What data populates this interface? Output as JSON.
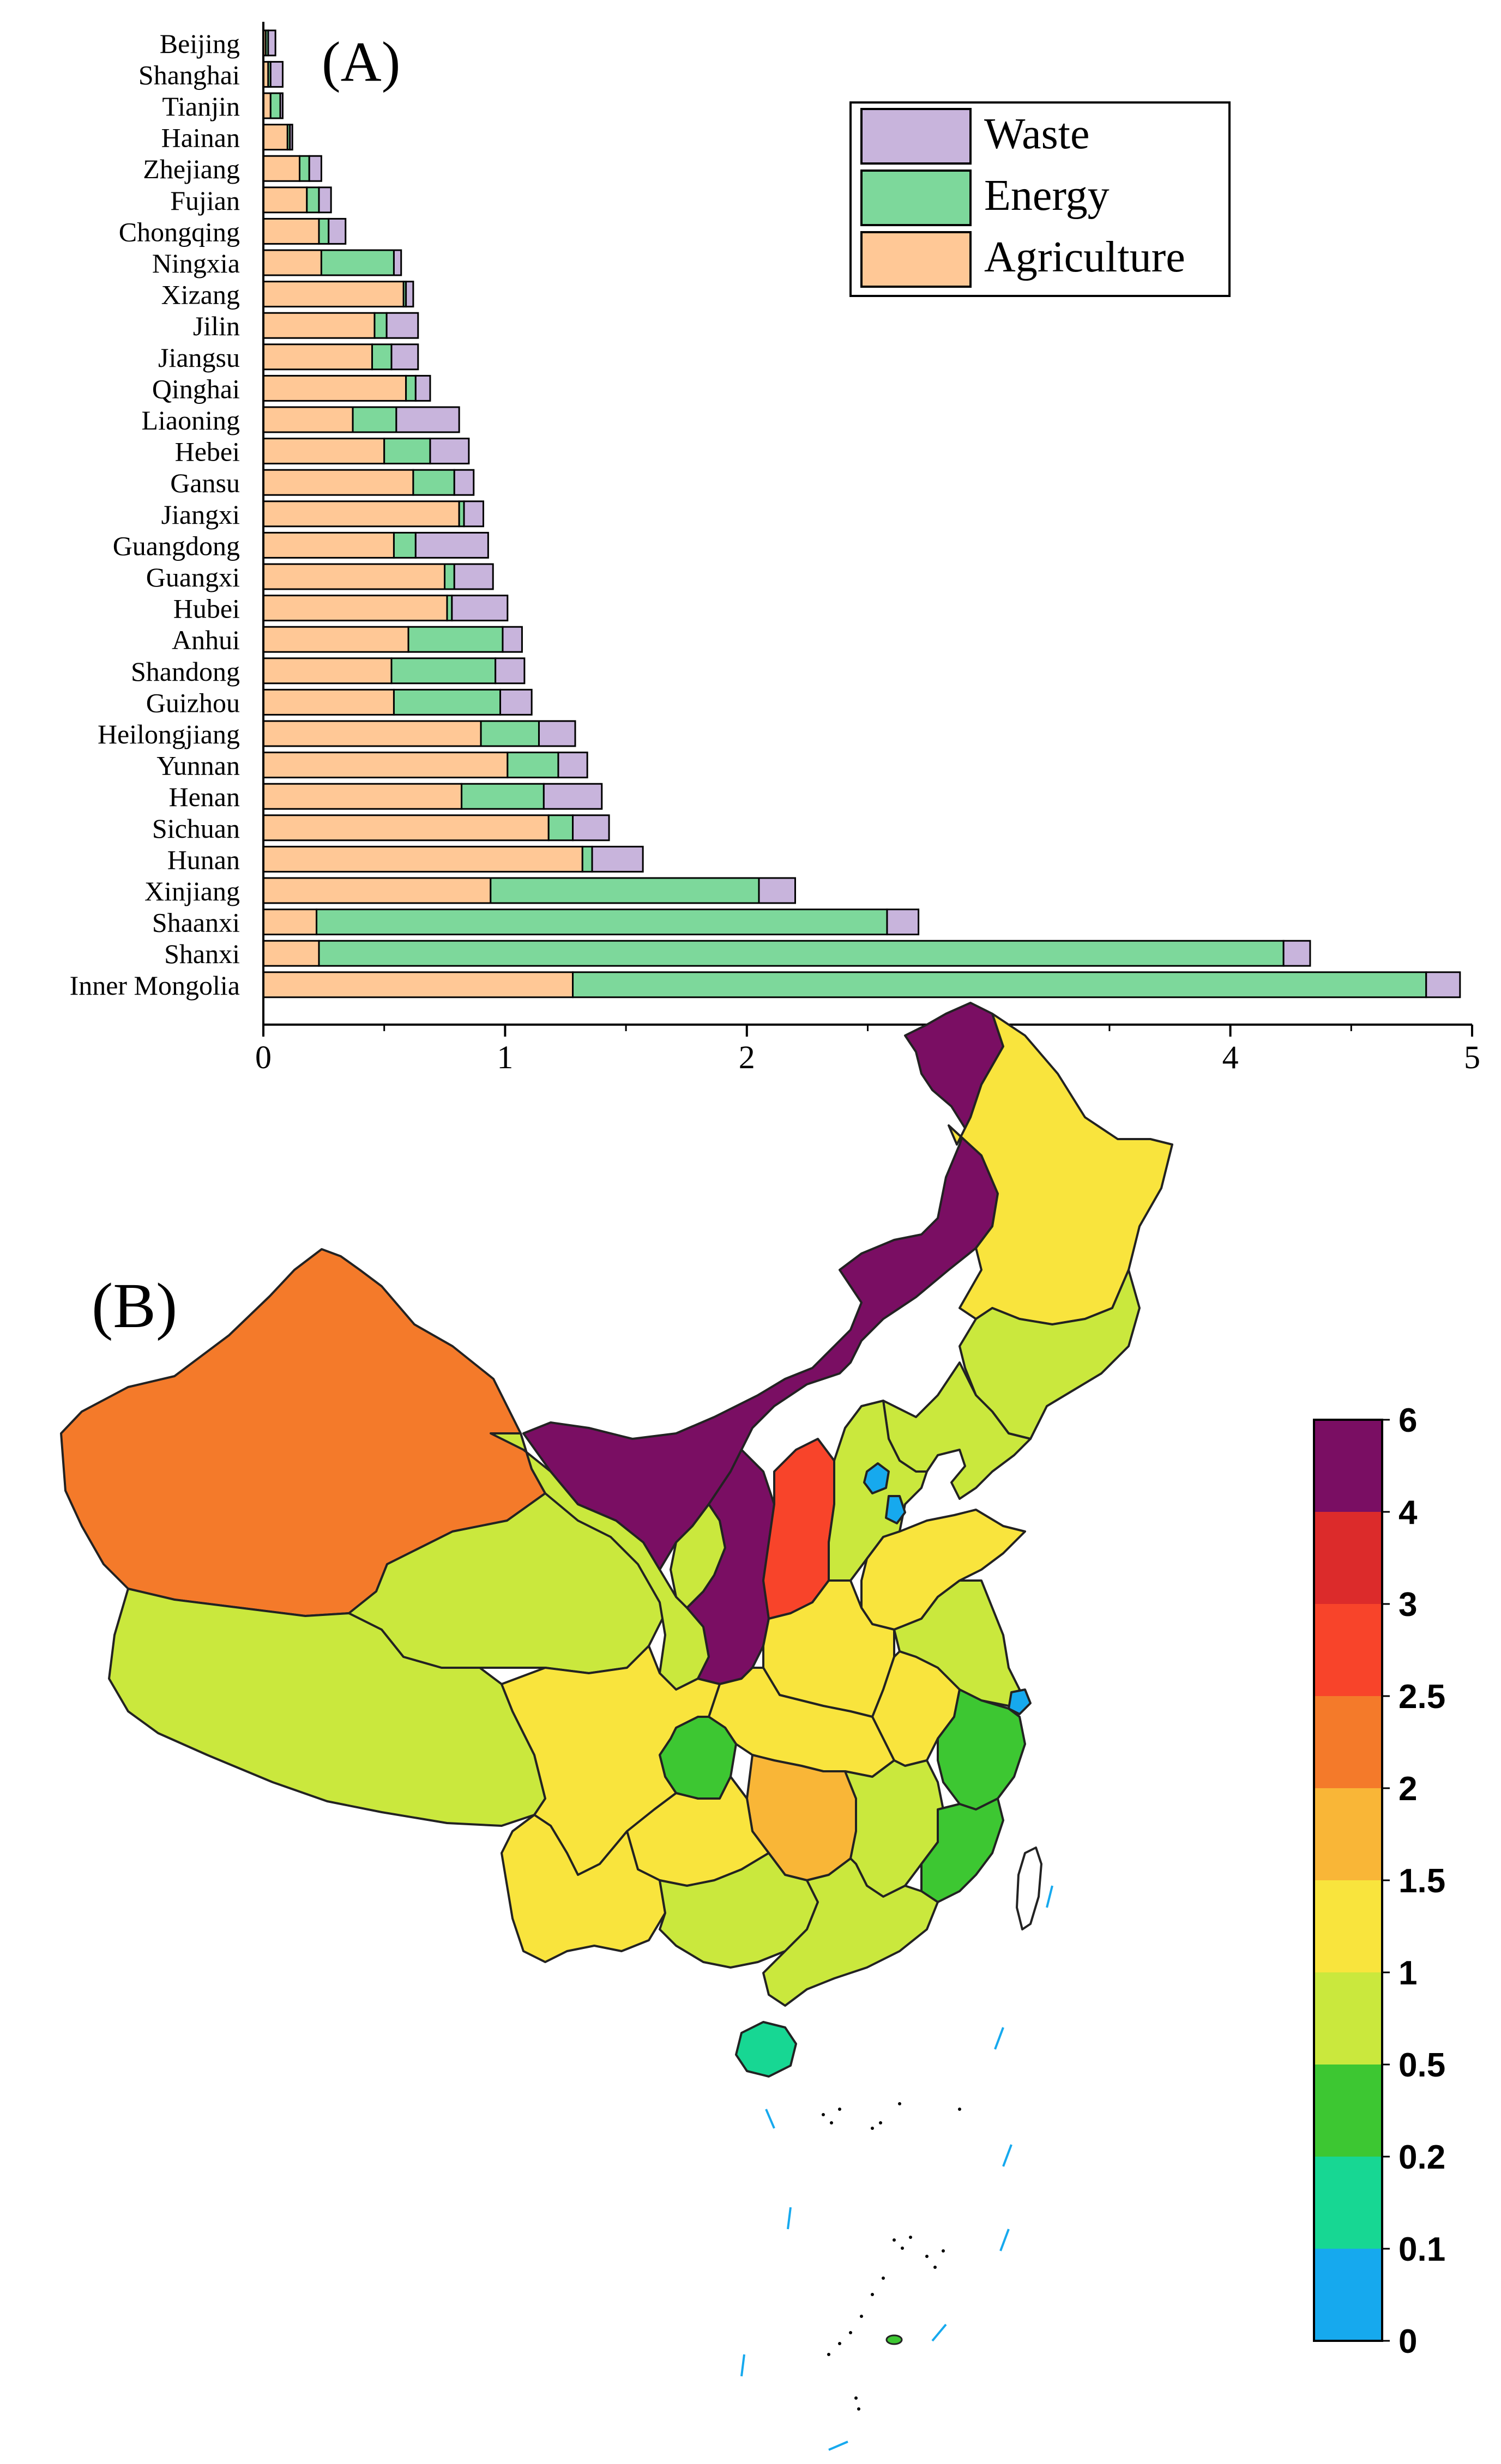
{
  "chart_data": [
    {
      "panel_label": "(A)",
      "type": "bar",
      "orientation": "horizontal",
      "stacked": true,
      "categories": [
        "Beijing",
        "Shanghai",
        "Tianjin",
        "Hainan",
        "Zhejiang",
        "Fujian",
        "Chongqing",
        "Ningxia",
        "Xizang",
        "Jilin",
        "Jiangsu",
        "Qinghai",
        "Liaoning",
        "Hebei",
        "Gansu",
        "Jiangxi",
        "Guangdong",
        "Guangxi",
        "Hubei",
        "Anhui",
        "Shandong",
        "Guizhou",
        "Heilongjiang",
        "Yunnan",
        "Henan",
        "Sichuan",
        "Hunan",
        "Xinjiang",
        "Shaanxi",
        "Shanxi",
        "Inner Mongolia"
      ],
      "series": [
        {
          "name": "Agriculture",
          "color": "#FFC896",
          "values": [
            0.01,
            0.02,
            0.03,
            0.1,
            0.15,
            0.18,
            0.23,
            0.24,
            0.58,
            0.46,
            0.45,
            0.59,
            0.37,
            0.5,
            0.62,
            0.81,
            0.54,
            0.75,
            0.76,
            0.6,
            0.53,
            0.54,
            0.9,
            1.01,
            0.82,
            1.18,
            1.32,
            0.94,
            0.22,
            0.23,
            1.28
          ]
        },
        {
          "name": "Energy",
          "color": "#7DD89B",
          "values": [
            0.01,
            0.01,
            0.04,
            0.01,
            0.04,
            0.05,
            0.04,
            0.3,
            0.01,
            0.05,
            0.08,
            0.04,
            0.18,
            0.19,
            0.17,
            0.02,
            0.09,
            0.04,
            0.02,
            0.39,
            0.43,
            0.44,
            0.24,
            0.21,
            0.34,
            0.1,
            0.04,
            1.11,
            2.36,
            3.99,
            3.53
          ]
        },
        {
          "name": "Waste",
          "color": "#C8B4DC",
          "values": [
            0.03,
            0.05,
            0.01,
            0.01,
            0.05,
            0.05,
            0.07,
            0.03,
            0.03,
            0.13,
            0.11,
            0.06,
            0.26,
            0.16,
            0.08,
            0.08,
            0.3,
            0.16,
            0.23,
            0.08,
            0.12,
            0.13,
            0.15,
            0.12,
            0.24,
            0.15,
            0.21,
            0.15,
            0.13,
            0.11,
            0.14
          ]
        }
      ],
      "xlim": [
        0,
        5
      ],
      "xticks": [
        0,
        1,
        2,
        3,
        4,
        5
      ],
      "legend_order": [
        "Waste",
        "Energy",
        "Agriculture"
      ],
      "legend_position": "top-right"
    },
    {
      "panel_label": "(B)",
      "type": "choropleth",
      "colorbar": {
        "tick_labels": [
          "6",
          "4",
          "3",
          "2.5",
          "2",
          "1.5",
          "1",
          "0.5",
          "0.2",
          "0.1",
          "0"
        ],
        "colors": [
          "#7A0E63",
          "#DC2B2B",
          "#F8442A",
          "#F47A2A",
          "#F9B637",
          "#F9E43D",
          "#CAE83D",
          "#3DC732",
          "#17D793",
          "#16A9EE"
        ]
      },
      "regions": [
        {
          "name": "Xinjiang",
          "color": "#F47A2A"
        },
        {
          "name": "Inner Mongolia",
          "color": "#7A0E63"
        },
        {
          "name": "Shaanxi",
          "color": "#7A0E63"
        },
        {
          "name": "Shanxi",
          "color": "#F8442A"
        },
        {
          "name": "Hunan",
          "color": "#F9B637"
        },
        {
          "name": "Xizang",
          "color": "#CAE83D"
        },
        {
          "name": "Qinghai",
          "color": "#CAE83D"
        },
        {
          "name": "Gansu",
          "color": "#CAE83D"
        },
        {
          "name": "Sichuan",
          "color": "#F9E43D"
        },
        {
          "name": "Yunnan",
          "color": "#F9E43D"
        },
        {
          "name": "Guizhou",
          "color": "#F9E43D"
        },
        {
          "name": "Chongqing",
          "color": "#3DC732"
        },
        {
          "name": "Heilongjiang",
          "color": "#F9E43D"
        },
        {
          "name": "Jilin",
          "color": "#CAE83D"
        },
        {
          "name": "Liaoning",
          "color": "#CAE83D"
        },
        {
          "name": "Hebei",
          "color": "#CAE83D"
        },
        {
          "name": "Beijing",
          "color": "#16A9EE"
        },
        {
          "name": "Tianjin",
          "color": "#16A9EE"
        },
        {
          "name": "Shanghai",
          "color": "#16A9EE"
        },
        {
          "name": "Shandong",
          "color": "#F9E43D"
        },
        {
          "name": "Henan",
          "color": "#F9E43D"
        },
        {
          "name": "Hubei",
          "color": "#F9E43D"
        },
        {
          "name": "Anhui",
          "color": "#F9E43D"
        },
        {
          "name": "Jiangsu",
          "color": "#CAE83D"
        },
        {
          "name": "Zhejiang",
          "color": "#3DC732"
        },
        {
          "name": "Fujian",
          "color": "#3DC732"
        },
        {
          "name": "Jiangxi",
          "color": "#CAE83D"
        },
        {
          "name": "Guangxi",
          "color": "#CAE83D"
        },
        {
          "name": "Guangdong",
          "color": "#CAE83D"
        },
        {
          "name": "Hainan",
          "color": "#17D793"
        },
        {
          "name": "Ningxia",
          "color": "#CAE83D"
        },
        {
          "name": "Taiwan",
          "color": "#FFFFFF"
        }
      ]
    }
  ]
}
